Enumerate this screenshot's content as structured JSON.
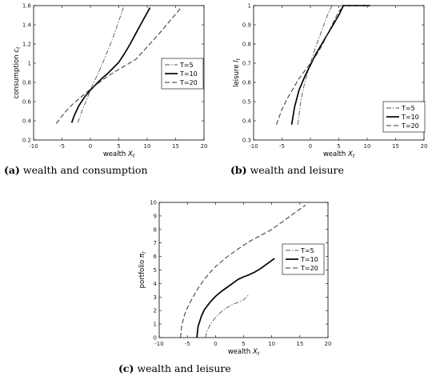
{
  "chart_data": [
    {
      "type": "line",
      "caption_label": "(a)",
      "caption_text": "wealth and consumption",
      "xlabel": "wealth",
      "xlabel_var": "X",
      "xlabel_sub": "t",
      "ylabel": "consumption",
      "ylabel_var": "c",
      "ylabel_sub": "t",
      "xlim": [
        -10,
        20
      ],
      "ylim": [
        0.2,
        1.6
      ],
      "xticks": [
        -10,
        -5,
        0,
        5,
        10,
        15,
        20
      ],
      "yticks": [
        0.2,
        0.4,
        0.6,
        0.8,
        1,
        1.2,
        1.4,
        1.6
      ],
      "legend_position": "right",
      "series": [
        {
          "name": "T=5",
          "style": "dashdot",
          "color": "#555555",
          "width": 0.9,
          "x": [
            -2.2,
            -1.5,
            -0.8,
            0,
            1,
            2,
            3,
            4,
            5,
            5.8
          ],
          "y": [
            0.38,
            0.5,
            0.6,
            0.72,
            0.85,
            0.98,
            1.12,
            1.27,
            1.44,
            1.58
          ]
        },
        {
          "name": "T=10",
          "style": "solid",
          "color": "#000000",
          "width": 1.7,
          "x": [
            -3.3,
            -2.8,
            -2,
            -1,
            0,
            1,
            2,
            3,
            4,
            5,
            6,
            7,
            8,
            9,
            10.5
          ],
          "y": [
            0.38,
            0.46,
            0.56,
            0.65,
            0.72,
            0.78,
            0.84,
            0.89,
            0.95,
            1.01,
            1.1,
            1.2,
            1.31,
            1.42,
            1.58
          ]
        },
        {
          "name": "T=20",
          "style": "dashed",
          "color": "#333333",
          "width": 1.0,
          "x": [
            -6,
            -5,
            -4,
            -3,
            -2,
            -1,
            0,
            2,
            4,
            6,
            8,
            10,
            12,
            14,
            16
          ],
          "y": [
            0.37,
            0.45,
            0.52,
            0.58,
            0.63,
            0.68,
            0.73,
            0.82,
            0.9,
            0.97,
            1.04,
            1.17,
            1.3,
            1.44,
            1.58
          ]
        }
      ]
    },
    {
      "type": "line",
      "caption_label": "(b)",
      "caption_text": "wealth and leisure",
      "xlabel": "wealth",
      "xlabel_var": "X",
      "xlabel_sub": "t",
      "ylabel": "leisure",
      "ylabel_var": "l",
      "ylabel_sub": "t",
      "xlim": [
        -10,
        20
      ],
      "ylim": [
        0.3,
        1
      ],
      "xticks": [
        -10,
        -5,
        0,
        5,
        10,
        15,
        20
      ],
      "yticks": [
        0.3,
        0.4,
        0.5,
        0.6,
        0.7,
        0.8,
        0.9,
        1
      ],
      "legend_position": "bottom-right",
      "series": [
        {
          "name": "T=5",
          "style": "dashdot",
          "color": "#555555",
          "width": 0.9,
          "x": [
            -2.2,
            -1.7,
            -1,
            0,
            1,
            2,
            3,
            3.8,
            6
          ],
          "y": [
            0.38,
            0.5,
            0.6,
            0.7,
            0.79,
            0.87,
            0.95,
            1,
            1
          ]
        },
        {
          "name": "T=10",
          "style": "solid",
          "color": "#000000",
          "width": 1.7,
          "x": [
            -3.3,
            -2.8,
            -2,
            -1,
            0,
            1,
            2,
            3,
            4,
            5,
            5.8,
            10.5
          ],
          "y": [
            0.38,
            0.47,
            0.56,
            0.63,
            0.69,
            0.75,
            0.8,
            0.85,
            0.9,
            0.95,
            1,
            1
          ]
        },
        {
          "name": "T=20",
          "style": "dashed",
          "color": "#333333",
          "width": 1.0,
          "x": [
            -6,
            -5,
            -4,
            -3,
            -2,
            -1,
            0,
            1,
            2,
            3,
            4,
            5,
            6,
            16.5
          ],
          "y": [
            0.38,
            0.46,
            0.52,
            0.57,
            0.62,
            0.66,
            0.7,
            0.74,
            0.79,
            0.85,
            0.91,
            0.97,
            1,
            1
          ]
        }
      ]
    },
    {
      "type": "line",
      "caption_label": "(c)",
      "caption_text": "wealth and leisure",
      "xlabel": "wealth",
      "xlabel_var": "X",
      "xlabel_sub": "t",
      "ylabel": "portfolio",
      "ylabel_var": "π",
      "ylabel_sub": "t",
      "xlim": [
        -10,
        20
      ],
      "ylim": [
        0,
        10
      ],
      "xticks": [
        -10,
        -5,
        0,
        5,
        10,
        15,
        20
      ],
      "yticks": [
        0,
        1,
        2,
        3,
        4,
        5,
        6,
        7,
        8,
        9,
        10
      ],
      "legend_position": "right",
      "series": [
        {
          "name": "T=5",
          "style": "dashdot",
          "color": "#555555",
          "width": 0.9,
          "x": [
            -1.8,
            -1.5,
            -1,
            -0.5,
            0,
            1,
            2,
            3,
            4,
            5,
            6
          ],
          "y": [
            0,
            0.5,
            0.9,
            1.2,
            1.5,
            1.9,
            2.2,
            2.45,
            2.6,
            2.8,
            3.2
          ]
        },
        {
          "name": "T=10",
          "style": "solid",
          "color": "#000000",
          "width": 1.7,
          "x": [
            -3.3,
            -3.1,
            -2.5,
            -2,
            -1,
            0,
            1,
            2,
            3,
            4,
            5,
            6,
            7,
            8,
            9,
            10.5
          ],
          "y": [
            0,
            0.8,
            1.6,
            2.05,
            2.6,
            3.05,
            3.4,
            3.7,
            4.0,
            4.3,
            4.5,
            4.65,
            4.85,
            5.1,
            5.4,
            5.85
          ]
        },
        {
          "name": "T=20",
          "style": "dashed",
          "color": "#333333",
          "width": 1.0,
          "x": [
            -6.2,
            -6,
            -5.5,
            -5,
            -4,
            -3,
            -2,
            -1,
            0,
            1,
            2,
            4,
            6,
            8,
            10,
            12,
            14,
            16
          ],
          "y": [
            0,
            0.9,
            1.7,
            2.2,
            3.0,
            3.7,
            4.3,
            4.8,
            5.25,
            5.6,
            5.95,
            6.55,
            7.1,
            7.55,
            8.0,
            8.6,
            9.2,
            9.8
          ]
        }
      ]
    }
  ]
}
